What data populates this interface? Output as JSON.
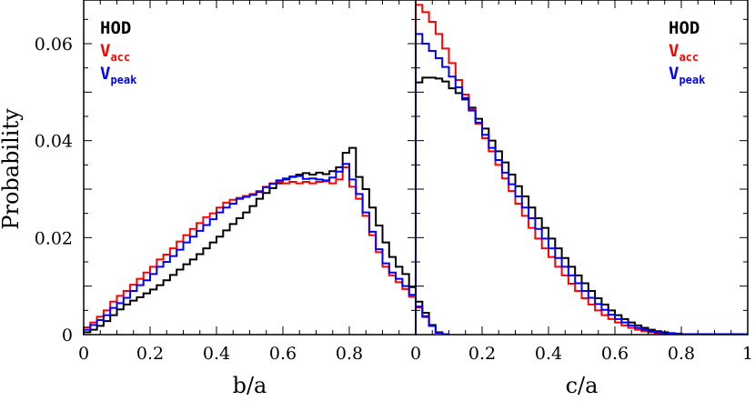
{
  "chart_data": {
    "type": "line",
    "ylabel": "Probability",
    "ylim": [
      0,
      0.069
    ],
    "yticks": [
      "0",
      "0.02",
      "0.04",
      "0.06"
    ],
    "yticks_values": [
      0,
      0.02,
      0.04,
      0.06
    ],
    "legend": [
      {
        "main": "HOD",
        "sub": "",
        "color": "#000000"
      },
      {
        "main": "V",
        "sub": "acc",
        "color": "#ff0000"
      },
      {
        "main": "V",
        "sub": "peak",
        "color": "#0000ff"
      }
    ],
    "panels": [
      {
        "xlabel": "b/a",
        "xlim": [
          0,
          1
        ],
        "xticks": [
          "0",
          "0.2",
          "0.4",
          "0.6",
          "0.8"
        ],
        "xticks_values": [
          0,
          0.2,
          0.4,
          0.6,
          0.8
        ],
        "bin_width": 0.02,
        "legend_position": "top-left",
        "series": [
          {
            "name": "HOD",
            "color": "#000000",
            "values": [
              0.0005,
              0.001,
              0.0018,
              0.0028,
              0.004,
              0.0052,
              0.0062,
              0.007,
              0.0077,
              0.0085,
              0.0093,
              0.0102,
              0.0112,
              0.0123,
              0.0134,
              0.0145,
              0.0155,
              0.0166,
              0.0178,
              0.019,
              0.0202,
              0.0215,
              0.0228,
              0.024,
              0.0252,
              0.0265,
              0.028,
              0.0292,
              0.0302,
              0.0312,
              0.032,
              0.0326,
              0.033,
              0.0333,
              0.033,
              0.0334,
              0.0331,
              0.0337,
              0.0345,
              0.0375,
              0.0385,
              0.0325,
              0.03,
              0.0262,
              0.0225,
              0.019,
              0.016,
              0.014,
              0.0125,
              0.0098,
              0.0068,
              0.0045,
              0.002,
              0.0005,
              0.0001
            ]
          },
          {
            "name": "V_acc",
            "color": "#ff0000",
            "values": [
              0.0015,
              0.0025,
              0.0037,
              0.005,
              0.0068,
              0.008,
              0.009,
              0.0103,
              0.0115,
              0.0128,
              0.014,
              0.0155,
              0.0165,
              0.0178,
              0.0192,
              0.0205,
              0.0218,
              0.023,
              0.0242,
              0.025,
              0.0262,
              0.0272,
              0.0278,
              0.0282,
              0.0286,
              0.029,
              0.0296,
              0.0305,
              0.0312,
              0.0315,
              0.0312,
              0.0315,
              0.0312,
              0.0315,
              0.0312,
              0.0315,
              0.0316,
              0.0312,
              0.032,
              0.0345,
              0.0305,
              0.028,
              0.0245,
              0.0205,
              0.017,
              0.014,
              0.0122,
              0.0108,
              0.0094,
              0.0078,
              0.0056,
              0.0036,
              0.0018,
              0.0004,
              0.0001
            ]
          },
          {
            "name": "V_peak",
            "color": "#0000ff",
            "values": [
              0.001,
              0.002,
              0.003,
              0.004,
              0.0055,
              0.0065,
              0.0076,
              0.009,
              0.0102,
              0.0112,
              0.0125,
              0.014,
              0.015,
              0.0162,
              0.0175,
              0.019,
              0.0202,
              0.0214,
              0.0226,
              0.0238,
              0.0252,
              0.0262,
              0.027,
              0.028,
              0.0284,
              0.0288,
              0.0294,
              0.0304,
              0.0311,
              0.0318,
              0.0322,
              0.0325,
              0.0327,
              0.0321,
              0.0322,
              0.032,
              0.0318,
              0.0324,
              0.0336,
              0.0352,
              0.032,
              0.029,
              0.0252,
              0.0212,
              0.0176,
              0.0147,
              0.0128,
              0.0115,
              0.01,
              0.0082,
              0.0058,
              0.0038,
              0.0018,
              0.0004,
              0.0001
            ]
          }
        ]
      },
      {
        "xlabel": "c/a",
        "xlim": [
          0,
          1
        ],
        "xticks": [
          "0",
          "0.2",
          "0.4",
          "0.6",
          "0.8",
          "1"
        ],
        "xticks_values": [
          0,
          0.2,
          0.4,
          0.6,
          0.8,
          1.0
        ],
        "bin_width": 0.02,
        "legend_position": "top-right",
        "series": [
          {
            "name": "HOD",
            "color": "#000000",
            "values": [
              0.052,
              0.053,
              0.053,
              0.0528,
              0.0522,
              0.0508,
              0.0498,
              0.0485,
              0.0468,
              0.0445,
              0.0425,
              0.04,
              0.0378,
              0.0355,
              0.033,
              0.0306,
              0.0285,
              0.0262,
              0.024,
              0.022,
              0.0198,
              0.0178,
              0.0158,
              0.014,
              0.0122,
              0.0106,
              0.009,
              0.0075,
              0.0062,
              0.005,
              0.004,
              0.0032,
              0.0025,
              0.0019,
              0.0014,
              0.001,
              0.0007,
              0.0005,
              0.0003,
              0.0002,
              0.0001,
              0.0001,
              0.0001,
              0.0001,
              0.0001,
              0.0001,
              0.0001,
              0.0001,
              0.0001,
              0.0001
            ]
          },
          {
            "name": "V_acc",
            "color": "#ff0000",
            "values": [
              0.068,
              0.0665,
              0.0645,
              0.062,
              0.059,
              0.056,
              0.0525,
              0.0495,
              0.0465,
              0.0435,
              0.0405,
              0.0378,
              0.035,
              0.0322,
              0.0296,
              0.027,
              0.0245,
              0.022,
              0.0198,
              0.0178,
              0.016,
              0.014,
              0.0122,
              0.0105,
              0.009,
              0.0075,
              0.0062,
              0.005,
              0.004,
              0.0032,
              0.0025,
              0.0019,
              0.0014,
              0.001,
              0.0007,
              0.0005,
              0.0003,
              0.0002,
              0.0001,
              0.0001,
              0.0001,
              0.0001,
              0.0001,
              0.0001,
              0.0001,
              0.0001,
              0.0001,
              0.0001,
              0.0001,
              0.0001
            ]
          },
          {
            "name": "V_peak",
            "color": "#0000ff",
            "values": [
              0.062,
              0.06,
              0.0585,
              0.057,
              0.0552,
              0.0532,
              0.051,
              0.0488,
              0.0462,
              0.0437,
              0.0412,
              0.0385,
              0.036,
              0.0334,
              0.031,
              0.0285,
              0.0262,
              0.024,
              0.0218,
              0.0198,
              0.0178,
              0.0158,
              0.014,
              0.0122,
              0.0106,
              0.009,
              0.0076,
              0.0063,
              0.0051,
              0.0041,
              0.0032,
              0.0025,
              0.0019,
              0.0014,
              0.001,
              0.0007,
              0.0005,
              0.0003,
              0.0002,
              0.0001,
              0.0001,
              0.0001,
              0.0001,
              0.0001,
              0.0001,
              0.0001,
              0.0001,
              0.0001,
              0.0001,
              0.0001
            ]
          }
        ]
      }
    ]
  }
}
